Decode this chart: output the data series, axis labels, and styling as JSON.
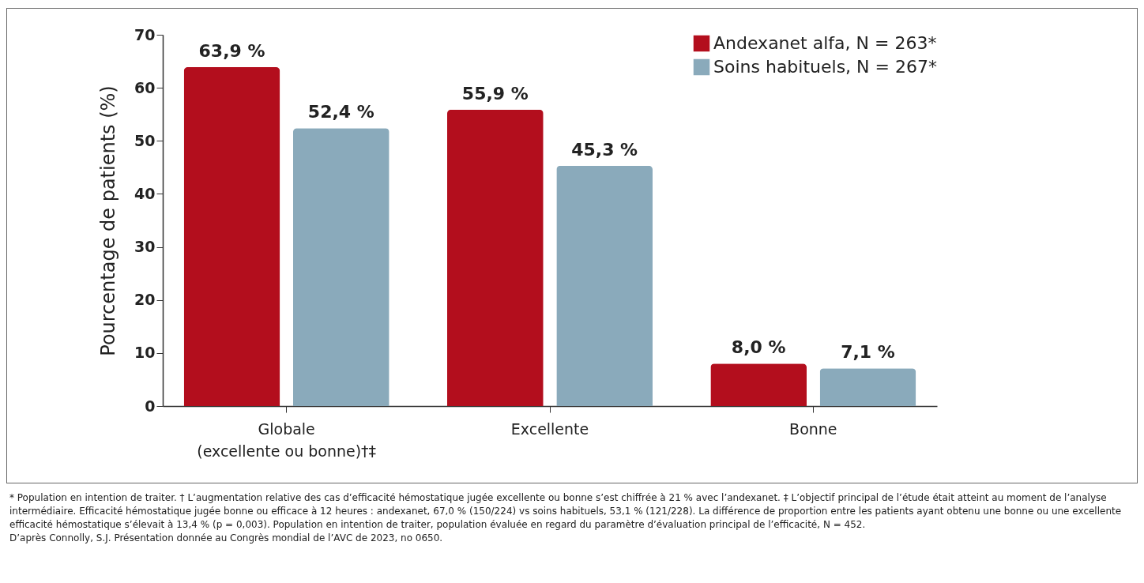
{
  "chart_data": {
    "type": "bar",
    "categories": [
      "Globale\n(excellente ou bonne)†‡",
      "Excellente",
      "Bonne"
    ],
    "ylabel": "Pourcentage de patients (%)",
    "series": [
      {
        "name": "Andexanet alfa, N = 263*",
        "color": "#b30e1d",
        "values": [
          63.9,
          55.9,
          8.0
        ],
        "value_labels": [
          "63,9 %",
          "55,9 %",
          "8,0 %"
        ]
      },
      {
        "name": "Soins habituels, N = 267*",
        "color": "#8aaabb",
        "values": [
          52.4,
          45.3,
          7.1
        ],
        "value_labels": [
          "52,4 %",
          "45,3 %",
          "7,1 %"
        ]
      }
    ],
    "ylim": [
      0,
      70
    ],
    "yticks": [
      0,
      10,
      20,
      30,
      40,
      50,
      60,
      70
    ],
    "grid": false,
    "legend": "top right",
    "annotations": [
      "* Population en intention de traiter. † L’augmentation relative des cas d’efficacité hémostatique jugée excellente ou bonne s’est chiffrée à 21 % avec l’andexanet. ‡ L’objectif principal de l’étude était atteint au moment de l’analyse intermédiaire. Efficacité hémostatique jugée bonne ou efficace à 12 heures : andexanet, 67,0 % (150/224) vs soins habituels, 53,1 % (121/228). La différence de proportion entre les patients ayant obtenu une bonne ou une excellente efficacité hémostatique s’élevait à 13,4 % (p = 0,003). Population en intention de traiter, population évaluée en regard du paramètre d’évaluation principal de l’efficacité, N = 452.",
      "D’après Connolly, S.J. Présentation donnée au Congrès mondial de l’AVC de 2023, no 0650."
    ]
  }
}
